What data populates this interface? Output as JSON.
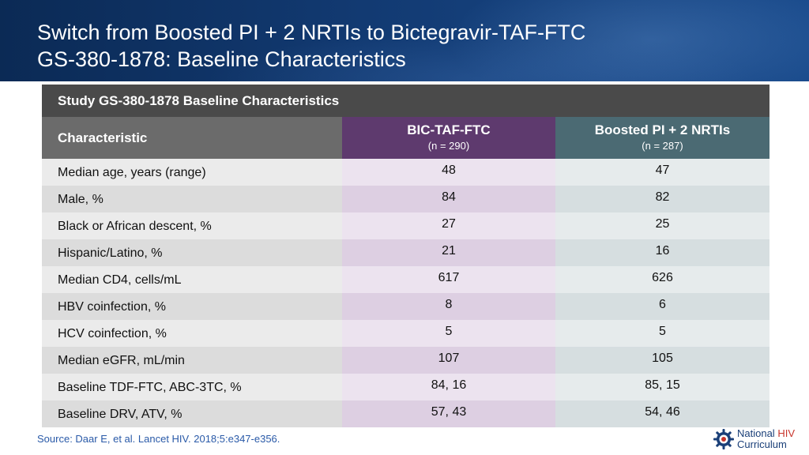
{
  "slide": {
    "title_line1": "Switch from Boosted PI + 2 NRTIs to Bictegravir-TAF-FTC",
    "title_line2": "GS-380-1878: Baseline Characteristics"
  },
  "table": {
    "title": "Study GS-380-1878 Baseline Characteristics",
    "header": {
      "characteristic": "Characteristic",
      "col1_name": "BIC-TAF-FTC",
      "col1_n": "(n = 290)",
      "col2_name": "Boosted PI + 2 NRTIs",
      "col2_n": "(n = 287)"
    },
    "rows": [
      {
        "label": "Median age, years (range)",
        "col1": "48",
        "col2": "47"
      },
      {
        "label": "Male, %",
        "col1": "84",
        "col2": "82"
      },
      {
        "label": "Black or African descent, %",
        "col1": "27",
        "col2": "25"
      },
      {
        "label": "Hispanic/Latino, %",
        "col1": "21",
        "col2": "16"
      },
      {
        "label": "Median CD4, cells/mL",
        "col1": "617",
        "col2": "626"
      },
      {
        "label": "HBV coinfection, %",
        "col1": "8",
        "col2": "6"
      },
      {
        "label": "HCV coinfection, %",
        "col1": "5",
        "col2": "5"
      },
      {
        "label": "Median eGFR, mL/min",
        "col1": "107",
        "col2": "105"
      },
      {
        "label": "Baseline TDF-FTC, ABC-3TC, %",
        "col1": "84, 16",
        "col2": "85, 15"
      },
      {
        "label": "Baseline DRV, ATV, %",
        "col1": "57, 43",
        "col2": "54, 46"
      }
    ]
  },
  "footer": {
    "source": "Source: Daar E, et al. Lancet HIV. 2018;5:e347-e356.",
    "logo_word1": "National",
    "logo_word2": "HIV",
    "logo_line2": "Curriculum",
    "logo_icon": "gear-icon"
  },
  "colors": {
    "header_bg": "#123a72",
    "table_title_bg": "#4a4a4a",
    "col1_header_bg": "#5e3a6e",
    "col2_header_bg": "#4b6a73",
    "source_text": "#2a5aa8",
    "logo_hiv": "#c8342b"
  }
}
